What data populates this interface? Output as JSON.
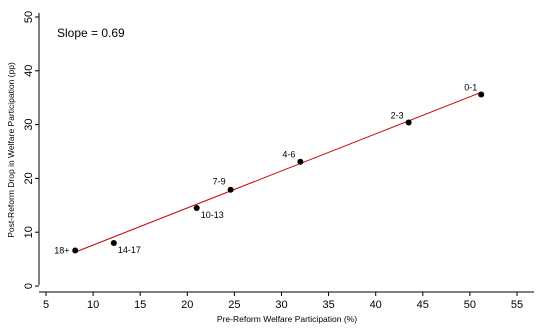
{
  "chart_data": {
    "type": "scatter",
    "xlabel": "Pre-Reform Welfare Participation (%)",
    "ylabel": "Post-Reform Drop in Welfare Participation (pp)",
    "xlim": [
      5,
      55
    ],
    "ylim": [
      0,
      50
    ],
    "xticks": [
      5,
      10,
      15,
      20,
      25,
      30,
      35,
      40,
      45,
      50,
      55
    ],
    "yticks": [
      0,
      10,
      20,
      30,
      40,
      50
    ],
    "annotation": "Slope = 0.69",
    "grid": false,
    "points": [
      {
        "label": "0-1",
        "x": 51.2,
        "y": 35.6
      },
      {
        "label": "2-3",
        "x": 43.5,
        "y": 30.4
      },
      {
        "label": "4-6",
        "x": 32.0,
        "y": 23.1
      },
      {
        "label": "7-9",
        "x": 24.6,
        "y": 17.9
      },
      {
        "label": "10-13",
        "x": 21.0,
        "y": 14.5
      },
      {
        "label": "14-17",
        "x": 12.2,
        "y": 8.0
      },
      {
        "label": "18+",
        "x": 8.1,
        "y": 6.6
      }
    ],
    "fit_line": {
      "slope": 0.69,
      "x_start": 8.1,
      "y_start": 6.3,
      "x_end": 51.2,
      "y_end": 36.0
    },
    "colors": {
      "points": "#000000",
      "fit_line": "#cc0000",
      "axes": "#000000"
    }
  }
}
